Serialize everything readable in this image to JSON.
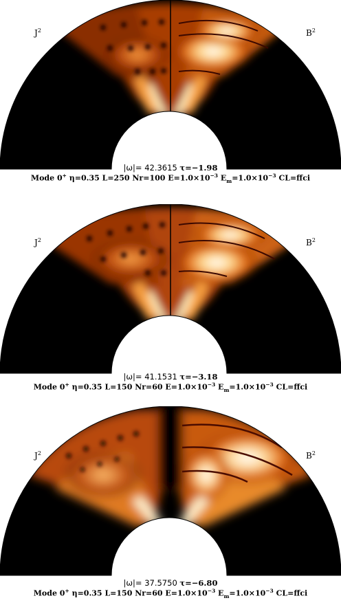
{
  "panels": [
    {
      "left_label": "J",
      "left_sup": "2",
      "right_label": "B",
      "right_sup": "2",
      "omega_text": "|ω|= 42.3615",
      "tau_text": "τ=−1.98",
      "caption": {
        "mode": "Mode 0",
        "mode_sup": "+",
        "eta": "η=0.35",
        "L": "L=250",
        "Nr": "Nr=100",
        "E_pre": "E=1.0×10",
        "E_exp": "−3",
        "Em_pre": "E",
        "Em_sub": "m",
        "Em_mid": "=1.0×10",
        "Em_exp": "−3",
        "CL": "CL=ffci"
      }
    },
    {
      "left_label": "J",
      "left_sup": "2",
      "right_label": "B",
      "right_sup": "2",
      "omega_text": "|ω|= 41.1531",
      "tau_text": "τ=−3.18",
      "caption": {
        "mode": "Mode 0",
        "mode_sup": "+",
        "eta": "η=0.35",
        "L": "L=150",
        "Nr": "Nr=60",
        "E_pre": "E=1.0×10",
        "E_exp": "−3",
        "Em_pre": "E",
        "Em_sub": "m",
        "Em_mid": "=1.0×10",
        "Em_exp": "−3",
        "CL": "CL=ffci"
      }
    },
    {
      "left_label": "J",
      "left_sup": "2",
      "right_label": "B",
      "right_sup": "2",
      "omega_text": "|ω|= 37.5750",
      "tau_text": "τ=−6.80",
      "caption": {
        "mode": "Mode 0",
        "mode_sup": "+",
        "eta": "η=0.35",
        "L": "L=150",
        "Nr": "Nr=60",
        "E_pre": "E=1.0×10",
        "E_exp": "−3",
        "Em_pre": "E",
        "Em_sub": "m",
        "Em_mid": "=1.0×10",
        "Em_exp": "−3",
        "CL": "CL=ffci"
      }
    }
  ],
  "colors": {
    "background": "#000000",
    "hot_dark": "#7a1e00",
    "hot_mid": "#e06a10",
    "hot_light": "#ffe0a0",
    "hot_white": "#ffffff"
  }
}
